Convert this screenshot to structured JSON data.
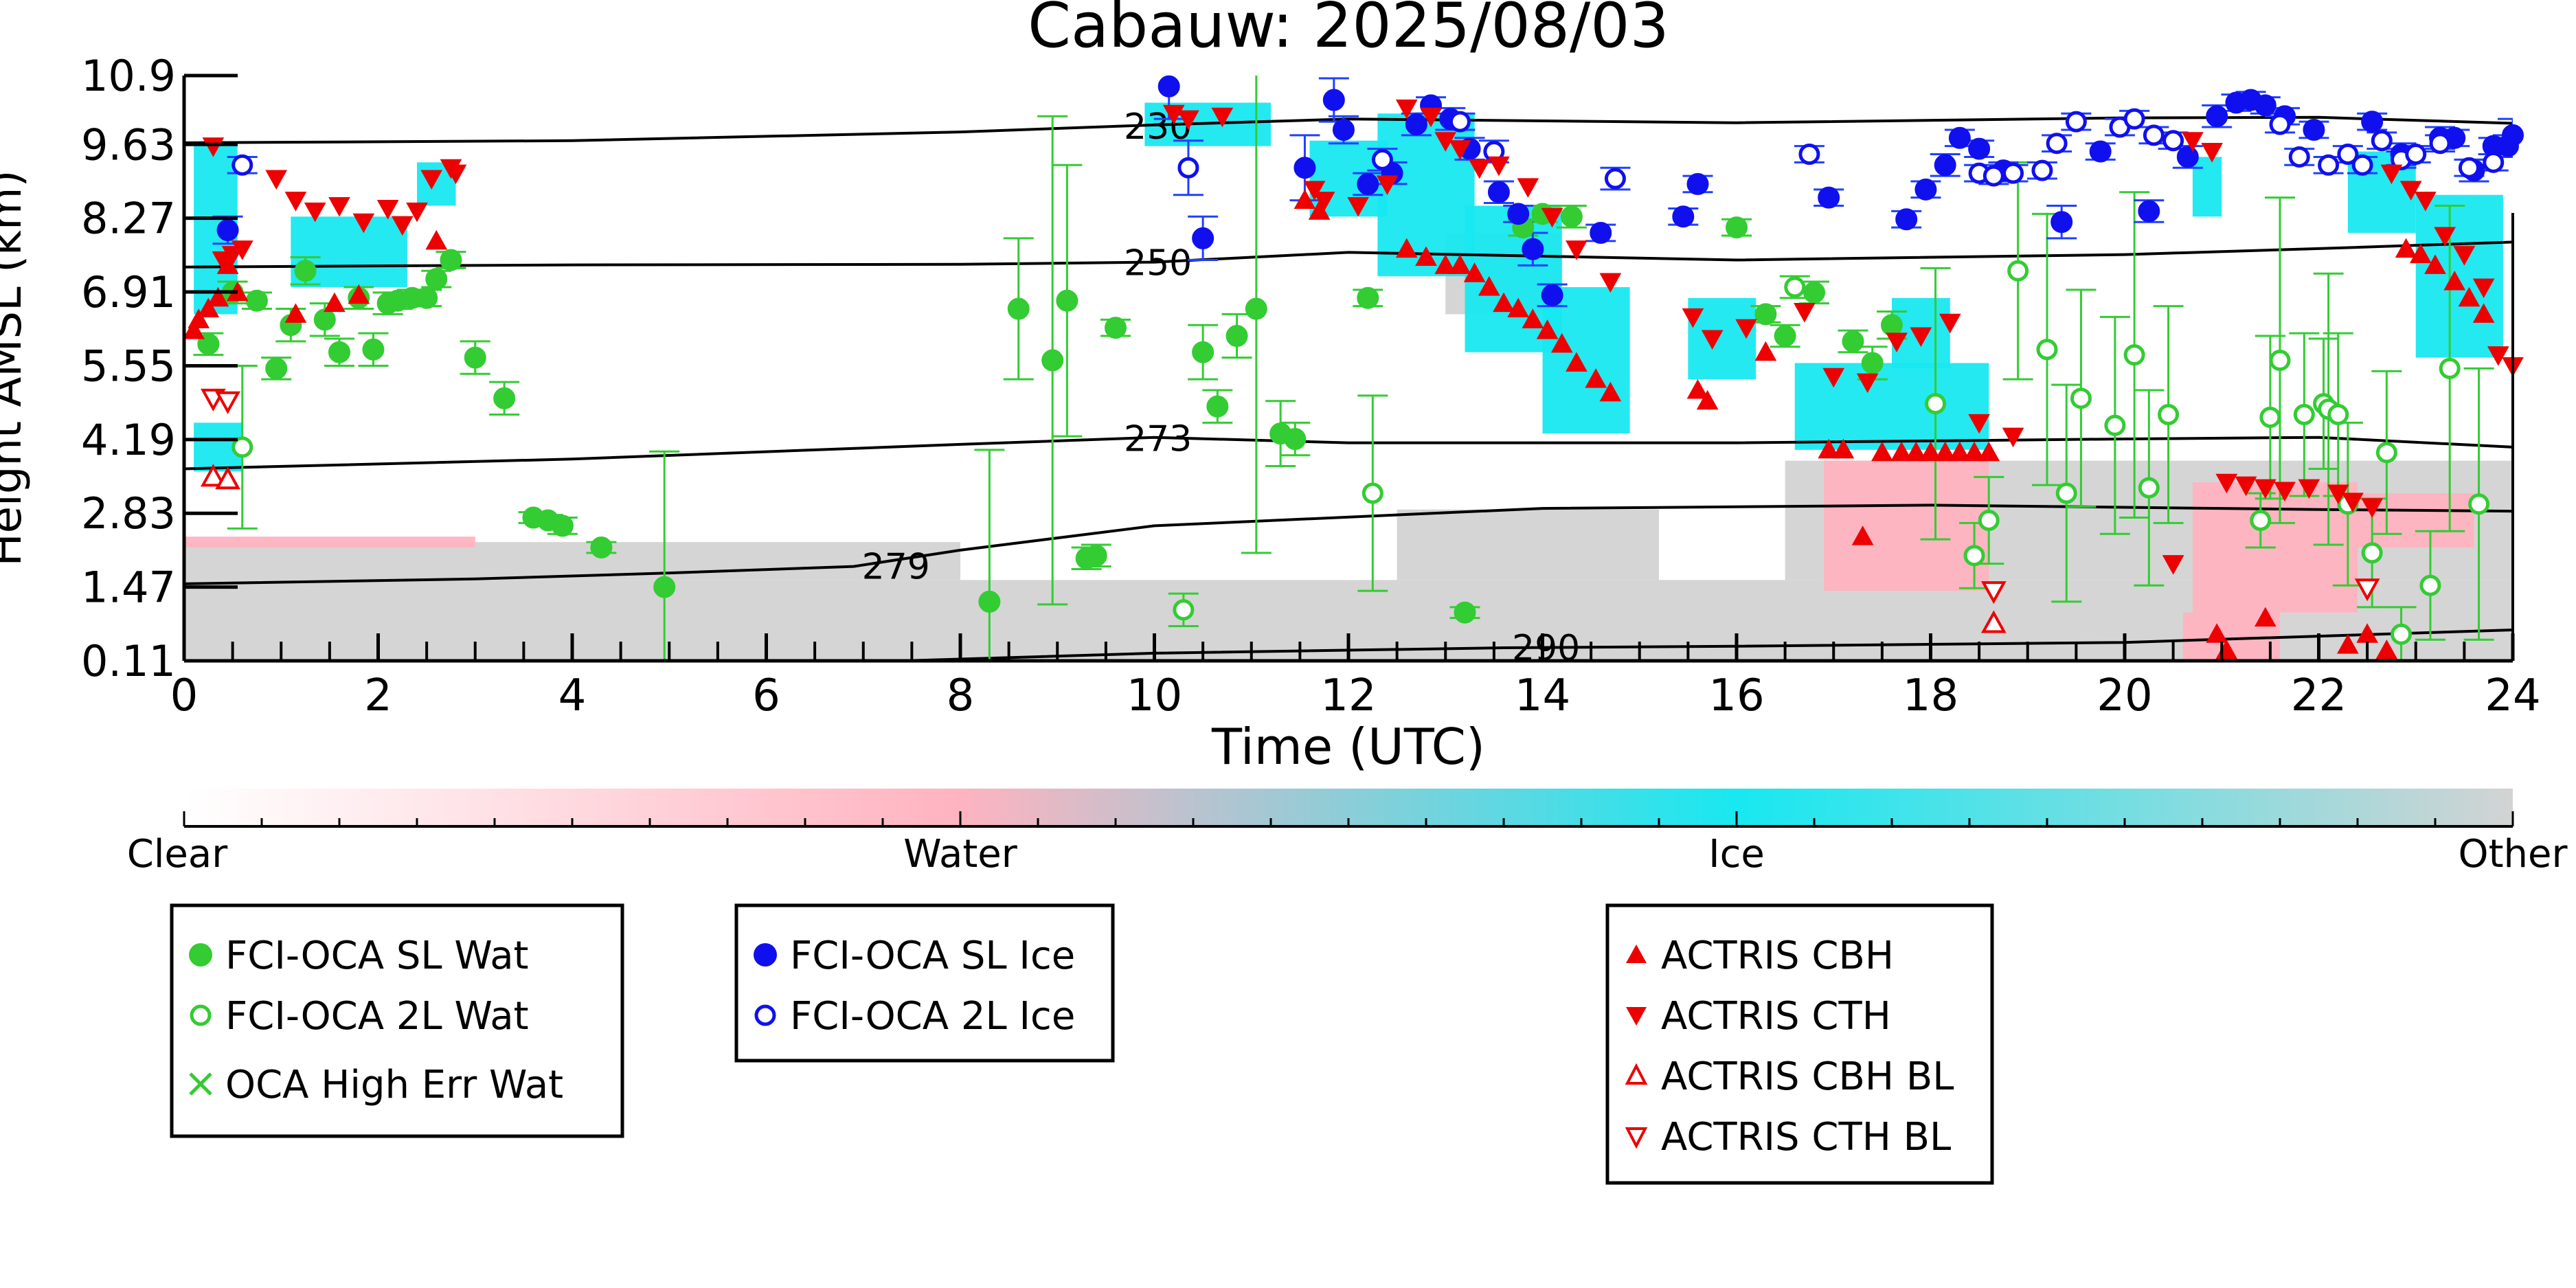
{
  "chart_data": {
    "type": "scatter",
    "title": "Cabauw: 2025/08/03",
    "xlabel": "Time (UTC)",
    "ylabel": "Height AMSL (km)",
    "xlim": [
      0,
      24
    ],
    "ylim": [
      0.11,
      10.9
    ],
    "grid": false,
    "x_ticks": [
      0,
      2,
      4,
      6,
      8,
      10,
      12,
      14,
      16,
      18,
      20,
      22,
      24
    ],
    "y_tick_labels": [
      "0.11",
      "1.47",
      "2.83",
      "4.19",
      "5.55",
      "6.91",
      "8.27",
      "9.63",
      "10.9"
    ],
    "background_field": {
      "description": "Cloudnet target classification",
      "colorbar_labels": [
        "Clear",
        "Water",
        "Ice",
        "Other"
      ],
      "colors": {
        "clear": "#ffffff",
        "water": "#ffb3c0",
        "ice": "#18e8f0",
        "other": "#d3d3d3"
      },
      "ice_regions": [
        {
          "x0": 0.1,
          "x1": 0.55,
          "y0": 6.5,
          "y1": 9.6
        },
        {
          "x0": 0.1,
          "x1": 0.6,
          "y0": 3.6,
          "y1": 4.5
        },
        {
          "x0": 1.1,
          "x1": 2.3,
          "y0": 7.0,
          "y1": 8.3
        },
        {
          "x0": 2.4,
          "x1": 2.8,
          "y0": 8.5,
          "y1": 9.3
        },
        {
          "x0": 9.9,
          "x1": 11.2,
          "y0": 9.6,
          "y1": 10.4
        },
        {
          "x0": 11.6,
          "x1": 12.4,
          "y0": 8.3,
          "y1": 9.7
        },
        {
          "x0": 12.3,
          "x1": 13.3,
          "y0": 7.2,
          "y1": 10.2
        },
        {
          "x0": 13.2,
          "x1": 14.2,
          "y0": 5.8,
          "y1": 8.5
        },
        {
          "x0": 14.0,
          "x1": 14.9,
          "y0": 4.3,
          "y1": 7.0
        },
        {
          "x0": 15.5,
          "x1": 16.2,
          "y0": 5.3,
          "y1": 6.8
        },
        {
          "x0": 16.6,
          "x1": 18.6,
          "y0": 4.0,
          "y1": 5.6
        },
        {
          "x0": 17.6,
          "x1": 18.2,
          "y0": 5.5,
          "y1": 6.8
        },
        {
          "x0": 20.7,
          "x1": 21.0,
          "y0": 8.3,
          "y1": 9.4
        },
        {
          "x0": 22.3,
          "x1": 23.0,
          "y0": 8.0,
          "y1": 9.5
        },
        {
          "x0": 23.0,
          "x1": 23.9,
          "y0": 5.7,
          "y1": 8.7
        }
      ],
      "other_regions": [
        {
          "x0": 0.0,
          "x1": 24.0,
          "y0": 0.11,
          "y1": 1.6
        },
        {
          "x0": 0.0,
          "x1": 8.0,
          "y0": 1.6,
          "y1": 2.3
        },
        {
          "x0": 12.5,
          "x1": 15.2,
          "y0": 1.6,
          "y1": 2.9
        },
        {
          "x0": 16.5,
          "x1": 24.0,
          "y0": 1.6,
          "y1": 3.8
        },
        {
          "x0": 13.0,
          "x1": 14.2,
          "y0": 6.5,
          "y1": 8.0
        }
      ],
      "water_regions": [
        {
          "x0": 0.0,
          "x1": 3.0,
          "y0": 2.2,
          "y1": 2.4
        },
        {
          "x0": 16.9,
          "x1": 18.6,
          "y0": 1.4,
          "y1": 3.8
        },
        {
          "x0": 20.7,
          "x1": 22.4,
          "y0": 1.0,
          "y1": 3.4
        },
        {
          "x0": 20.6,
          "x1": 21.6,
          "y0": 0.11,
          "y1": 1.0
        },
        {
          "x0": 22.4,
          "x1": 23.6,
          "y0": 2.2,
          "y1": 3.2
        }
      ]
    },
    "temperature_contours": [
      {
        "label": "230",
        "label_x": 9.6,
        "x": [
          0,
          4,
          8,
          10,
          12,
          16,
          20,
          22,
          24
        ],
        "y": [
          9.66,
          9.7,
          9.86,
          9.99,
          10.1,
          10.03,
          10.12,
          10.13,
          10.02
        ]
      },
      {
        "label": "250",
        "label_x": 9.6,
        "x": [
          0,
          4,
          8,
          10,
          12,
          16,
          20,
          22,
          24
        ],
        "y": [
          7.37,
          7.41,
          7.42,
          7.46,
          7.64,
          7.5,
          7.6,
          7.71,
          7.83
        ]
      },
      {
        "label": "273",
        "label_x": 9.6,
        "x": [
          0,
          4,
          8,
          10,
          12,
          16,
          20,
          22,
          24
        ],
        "y": [
          3.65,
          3.83,
          4.1,
          4.23,
          4.13,
          4.13,
          4.2,
          4.23,
          4.05
        ]
      },
      {
        "label": "279",
        "label_x": 6.9,
        "x": [
          0,
          3,
          5,
          6.9,
          8,
          10,
          14,
          18,
          22,
          24
        ],
        "y": [
          1.53,
          1.62,
          1.73,
          1.85,
          2.15,
          2.6,
          2.92,
          2.98,
          2.9,
          2.87
        ]
      },
      {
        "label": "290",
        "label_x": 13.6,
        "x": [
          7.4,
          10,
          13.6,
          16,
          20,
          24
        ],
        "y": [
          0.11,
          0.25,
          0.35,
          0.38,
          0.45,
          0.68
        ]
      }
    ],
    "series": [
      {
        "name": "FCI-OCA SL Wat",
        "marker": "filled-circle",
        "color": "#33cc33",
        "x": [
          0.25,
          0.5,
          0.75,
          0.95,
          1.1,
          1.25,
          1.45,
          1.6,
          1.8,
          1.95,
          2.1,
          2.2,
          2.35,
          2.5,
          2.6,
          2.75,
          3.0,
          3.3,
          3.6,
          3.75,
          3.9,
          4.3,
          4.95,
          8.3,
          8.6,
          8.95,
          9.1,
          9.3,
          9.4,
          9.6,
          10.5,
          10.65,
          10.85,
          11.05,
          11.3,
          11.45,
          12.2,
          13.2,
          13.8,
          14.0,
          14.3,
          16.0,
          16.3,
          16.5,
          16.8,
          17.2,
          17.4,
          17.6
        ],
        "y": [
          5.95,
          6.9,
          6.75,
          5.5,
          6.3,
          7.3,
          6.4,
          5.8,
          6.8,
          5.85,
          6.7,
          6.75,
          6.8,
          6.8,
          7.15,
          7.5,
          5.7,
          4.95,
          2.75,
          2.7,
          2.6,
          2.2,
          1.47,
          1.2,
          6.6,
          5.65,
          6.75,
          2.0,
          2.05,
          6.25,
          5.8,
          4.8,
          6.1,
          6.6,
          4.3,
          4.2,
          6.8,
          1.0,
          8.1,
          8.35,
          8.3,
          8.1,
          6.5,
          6.1,
          6.9,
          6.0,
          5.6,
          6.3
        ],
        "yerr": [
          0.2,
          0.2,
          0.15,
          0.2,
          0.3,
          0.25,
          0.3,
          0.25,
          0.2,
          0.3,
          0.2,
          0.15,
          0.15,
          0.15,
          0.15,
          0.15,
          0.3,
          0.3,
          0.1,
          0.1,
          0.15,
          0.1,
          2.5,
          2.8,
          1.3,
          4.5,
          2.5,
          0.2,
          0.2,
          0.15,
          0.5,
          0.3,
          0.4,
          4.5,
          0.6,
          0.3,
          0.15,
          0.1,
          0.15,
          0.15,
          0.2,
          0.15,
          0.15,
          0.2,
          0.2,
          0.2,
          0.3,
          0.25
        ]
      },
      {
        "name": "FCI-OCA 2L Wat",
        "marker": "open-circle",
        "color": "#33cc33",
        "x": [
          0.6,
          10.3,
          12.25,
          16.6,
          18.05,
          18.45,
          18.6,
          18.9,
          19.2,
          19.4,
          19.55,
          19.9,
          20.1,
          20.25,
          20.45,
          21.4,
          21.5,
          21.6,
          21.85,
          22.05,
          22.1,
          22.2,
          22.3,
          22.55,
          22.7,
          22.85,
          23.15,
          23.35,
          23.65
        ],
        "y": [
          4.05,
          1.05,
          3.2,
          7.0,
          4.85,
          2.05,
          2.7,
          7.3,
          5.85,
          3.2,
          4.95,
          4.45,
          5.75,
          3.3,
          4.65,
          2.7,
          4.6,
          5.65,
          4.65,
          4.85,
          4.75,
          4.65,
          3.0,
          2.1,
          3.95,
          0.6,
          1.5,
          5.5,
          3.0
        ],
        "yerr": [
          1.5,
          0.3,
          1.8,
          0.2,
          2.5,
          0.6,
          0.8,
          2.0,
          2.5,
          2.0,
          2.0,
          2.0,
          3.0,
          1.8,
          2.0,
          0.5,
          1.5,
          3.0,
          1.5,
          1.2,
          2.5,
          1.5,
          1.5,
          1.0,
          1.5,
          0.5,
          1.0,
          3.0,
          2.5
        ]
      },
      {
        "name": "OCA High Err Wat",
        "marker": "x",
        "color": "#33cc33",
        "x": [],
        "y": []
      },
      {
        "name": "FCI-OCA SL Ice",
        "marker": "filled-circle",
        "color": "#1010ee",
        "x": [
          0.45,
          10.15,
          10.5,
          11.55,
          11.85,
          11.95,
          12.2,
          12.45,
          12.7,
          12.85,
          13.05,
          13.25,
          13.55,
          13.75,
          13.9,
          14.1,
          14.6,
          15.45,
          15.6,
          16.95,
          17.75,
          17.95,
          18.15,
          18.3,
          18.5,
          18.75,
          19.35,
          19.75,
          20.25,
          20.65,
          20.95,
          21.15,
          21.3,
          21.45,
          21.65,
          21.95,
          22.55,
          22.85,
          23.25,
          23.4,
          23.6,
          23.8,
          23.95,
          24.0
        ],
        "y": [
          8.05,
          10.7,
          7.9,
          9.2,
          10.45,
          9.9,
          8.9,
          9.1,
          10.0,
          10.35,
          10.1,
          9.55,
          8.75,
          8.35,
          7.7,
          6.85,
          8.0,
          8.3,
          8.9,
          8.65,
          8.25,
          8.8,
          9.25,
          9.75,
          9.55,
          9.15,
          8.2,
          9.5,
          8.4,
          9.4,
          10.15,
          10.4,
          10.45,
          10.35,
          10.15,
          9.9,
          10.05,
          9.45,
          9.75,
          9.75,
          9.15,
          9.6,
          9.6,
          9.8
        ],
        "yerr": [
          0.25,
          0.6,
          0.4,
          0.6,
          0.4,
          0.25,
          0.2,
          0.2,
          0.2,
          0.15,
          0.2,
          0.2,
          0.2,
          0.15,
          0.3,
          0.2,
          0.15,
          0.15,
          0.15,
          0.15,
          0.15,
          0.15,
          0.2,
          0.15,
          0.15,
          0.15,
          0.3,
          0.15,
          0.2,
          0.2,
          0.2,
          0.15,
          0.15,
          0.15,
          0.15,
          0.15,
          0.15,
          0.2,
          0.2,
          0.15,
          0.2,
          0.15,
          0.2,
          0.3
        ]
      },
      {
        "name": "FCI-OCA 2L Ice",
        "marker": "open-circle",
        "color": "#1010ee",
        "x": [
          0.6,
          10.35,
          12.35,
          13.15,
          13.5,
          14.75,
          16.75,
          18.5,
          18.65,
          18.85,
          19.15,
          19.3,
          19.5,
          19.95,
          20.1,
          20.3,
          20.5,
          21.6,
          21.8,
          22.1,
          22.3,
          22.45,
          22.65,
          22.85,
          23.0,
          23.25,
          23.55,
          23.8
        ],
        "y": [
          9.25,
          9.2,
          9.35,
          10.05,
          9.5,
          9.0,
          9.45,
          9.1,
          9.05,
          9.1,
          9.15,
          9.65,
          10.05,
          9.95,
          10.1,
          9.8,
          9.7,
          10.0,
          9.4,
          9.25,
          9.45,
          9.25,
          9.7,
          9.35,
          9.45,
          9.65,
          9.2,
          9.3
        ],
        "yerr": [
          0.15,
          0.5,
          0.2,
          0.15,
          0.2,
          0.2,
          0.15,
          0.15,
          0.15,
          0.15,
          0.15,
          0.15,
          0.15,
          0.15,
          0.15,
          0.15,
          0.15,
          0.15,
          0.15,
          0.15,
          0.15,
          0.15,
          0.15,
          0.15,
          0.15,
          0.15,
          0.15,
          0.15
        ]
      },
      {
        "name": "ACTRIS CBH",
        "marker": "triangle-up",
        "color": "#ee0000",
        "x": [
          0.1,
          0.15,
          0.25,
          0.35,
          0.45,
          0.55,
          1.15,
          1.55,
          1.8,
          2.6,
          11.55,
          11.7,
          12.6,
          12.8,
          13.0,
          13.15,
          13.3,
          13.45,
          13.6,
          13.75,
          13.9,
          14.05,
          14.2,
          14.35,
          14.55,
          14.7,
          15.6,
          15.7,
          16.3,
          17.3,
          16.95,
          17.1,
          17.5,
          17.7,
          17.85,
          18.0,
          18.15,
          18.3,
          18.45,
          18.6,
          20.95,
          21.05,
          21.45,
          22.3,
          22.5,
          22.7,
          22.9,
          23.05,
          23.2,
          23.4,
          23.55,
          23.7
        ],
        "y": [
          6.2,
          6.4,
          6.6,
          6.8,
          7.4,
          6.9,
          6.5,
          6.7,
          6.85,
          7.85,
          8.6,
          8.4,
          7.7,
          7.55,
          7.4,
          7.4,
          7.25,
          7.0,
          6.7,
          6.6,
          6.4,
          6.2,
          5.95,
          5.6,
          5.3,
          5.05,
          5.1,
          4.9,
          5.8,
          2.4,
          4.0,
          4.0,
          3.95,
          3.95,
          3.95,
          3.95,
          3.95,
          3.95,
          3.95,
          3.95,
          0.6,
          0.3,
          0.9,
          0.4,
          0.6,
          0.3,
          7.7,
          7.6,
          7.4,
          7.1,
          6.8,
          6.5
        ],
        "yerr": []
      },
      {
        "name": "ACTRIS CTH",
        "marker": "triangle-down",
        "color": "#ee0000",
        "x": [
          0.3,
          0.4,
          0.5,
          0.6,
          0.95,
          1.15,
          1.35,
          1.6,
          1.85,
          2.1,
          2.25,
          2.4,
          2.55,
          2.75,
          2.8,
          10.2,
          10.35,
          10.7,
          11.65,
          11.75,
          12.1,
          12.4,
          12.6,
          12.85,
          13.0,
          13.15,
          13.35,
          13.55,
          13.85,
          14.1,
          14.35,
          14.7,
          15.55,
          15.75,
          16.1,
          16.7,
          17.0,
          17.35,
          17.65,
          17.9,
          18.2,
          18.5,
          18.85,
          20.5,
          20.7,
          20.9,
          21.05,
          21.25,
          21.45,
          21.65,
          21.9,
          22.2,
          22.35,
          22.55,
          22.75,
          22.95,
          23.1,
          23.3,
          23.5,
          23.7,
          23.85,
          24.0
        ],
        "y": [
          9.6,
          7.5,
          7.6,
          7.7,
          9.0,
          8.6,
          8.4,
          8.5,
          8.2,
          8.45,
          8.15,
          8.4,
          9.0,
          9.2,
          9.1,
          10.2,
          10.1,
          10.15,
          8.8,
          8.6,
          8.5,
          8.9,
          10.3,
          10.15,
          9.7,
          9.55,
          9.2,
          9.25,
          8.85,
          8.3,
          7.7,
          7.1,
          6.45,
          6.05,
          6.25,
          6.55,
          5.35,
          5.25,
          6.0,
          6.1,
          6.35,
          4.5,
          4.25,
          1.9,
          9.7,
          9.5,
          3.4,
          3.35,
          3.3,
          3.25,
          3.3,
          3.2,
          3.05,
          2.95,
          9.1,
          8.8,
          8.6,
          7.95,
          7.6,
          7.0,
          5.75,
          5.55
        ],
        "yerr": []
      },
      {
        "name": "ACTRIS CBH BL",
        "marker": "open-triangle-up",
        "color": "#ee0000",
        "x": [
          0.3,
          0.45,
          18.65
        ],
        "y": [
          3.5,
          3.45,
          0.8
        ],
        "yerr": []
      },
      {
        "name": "ACTRIS CTH BL",
        "marker": "open-triangle-down",
        "color": "#ee0000",
        "x": [
          0.3,
          0.45,
          18.65,
          22.5
        ],
        "y": [
          4.95,
          4.9,
          1.4,
          1.45
        ],
        "yerr": []
      }
    ],
    "legends": [
      {
        "entries": [
          "FCI-OCA SL Wat",
          "FCI-OCA 2L Wat",
          "OCA High Err Wat"
        ]
      },
      {
        "entries": [
          "FCI-OCA SL Ice",
          "FCI-OCA 2L Ice"
        ]
      },
      {
        "entries": [
          "ACTRIS CBH",
          "ACTRIS CTH",
          "ACTRIS CBH BL",
          "ACTRIS CTH BL"
        ]
      }
    ]
  }
}
